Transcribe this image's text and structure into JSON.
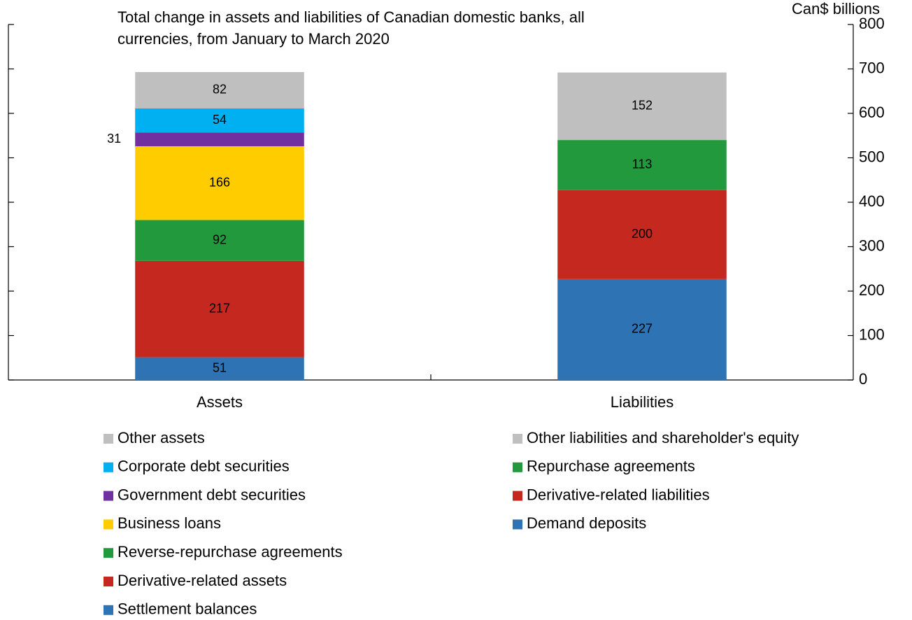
{
  "chart_data": {
    "type": "stacked_bar",
    "title": [
      "Total change in assets and liabilities of Canadian domestic banks, all",
      "currencies, from January to March 2020"
    ],
    "y_axis_label": "Can$ billions",
    "categories": [
      "Assets",
      "Liabilities"
    ],
    "ylim": [
      0,
      800
    ],
    "yticks": [
      0,
      100,
      200,
      300,
      400,
      500,
      600,
      700,
      800
    ],
    "series": [
      {
        "name": "Settlement balances",
        "color": "#2e74b5",
        "values": [
          51,
          null
        ]
      },
      {
        "name": "Derivative-related assets",
        "color": "#c4281f",
        "values": [
          217,
          null
        ]
      },
      {
        "name": "Reverse-repurchase agreements",
        "color": "#22993c",
        "values": [
          92,
          null
        ]
      },
      {
        "name": "Business loans",
        "color": "#ffcc00",
        "values": [
          166,
          null
        ]
      },
      {
        "name": "Government debt securities",
        "color": "#7030a0",
        "values": [
          31,
          null
        ]
      },
      {
        "name": "Corporate debt securities",
        "color": "#00b0f0",
        "values": [
          54,
          null
        ]
      },
      {
        "name": "Other assets",
        "color": "#bfbfbf",
        "values": [
          82,
          null
        ]
      },
      {
        "name": "Demand deposits",
        "color": "#2e74b5",
        "values": [
          null,
          227
        ]
      },
      {
        "name": "Derivative-related liabilities",
        "color": "#c4281f",
        "values": [
          null,
          200
        ]
      },
      {
        "name": "Repurchase agreements",
        "color": "#22993c",
        "values": [
          null,
          113
        ]
      },
      {
        "name": "Other liabilities and shareholder's equity",
        "color": "#bfbfbf",
        "values": [
          null,
          152
        ]
      }
    ]
  }
}
